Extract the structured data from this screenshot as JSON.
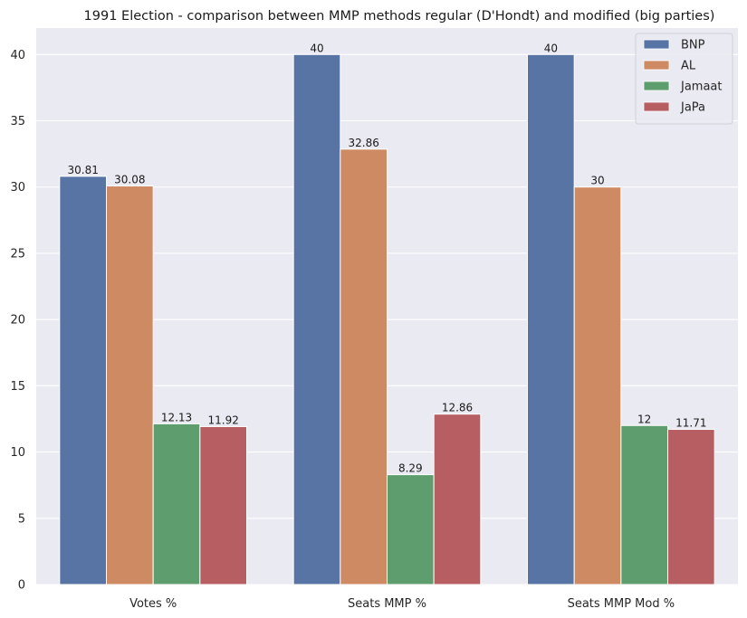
{
  "chart_data": {
    "type": "bar",
    "title": "1991 Election - comparison between MMP methods regular (D'Hondt) and modified (big parties)",
    "xlabel": "",
    "ylabel": "",
    "categories": [
      "Votes %",
      "Seats MMP %",
      "Seats MMP Mod %"
    ],
    "series": [
      {
        "name": "BNP",
        "values": [
          30.81,
          40,
          40
        ],
        "labels": [
          "30.81",
          "40",
          "40"
        ],
        "color": "#5874a5"
      },
      {
        "name": "AL",
        "values": [
          30.08,
          32.86,
          30
        ],
        "labels": [
          "30.08",
          "32.86",
          "30"
        ],
        "color": "#cd8a63"
      },
      {
        "name": "Jamaat",
        "values": [
          12.13,
          8.29,
          12
        ],
        "labels": [
          "12.13",
          "8.29",
          "12"
        ],
        "color": "#5e9e6e"
      },
      {
        "name": "JaPa",
        "values": [
          11.92,
          12.86,
          11.71
        ],
        "labels": [
          "11.92",
          "12.86",
          "11.71"
        ],
        "color": "#b65e62"
      }
    ],
    "ylim": [
      0,
      42
    ],
    "yticks": [
      0,
      5,
      10,
      15,
      20,
      25,
      30,
      35,
      40
    ],
    "ytick_labels": [
      "0",
      "5",
      "10",
      "15",
      "20",
      "25",
      "30",
      "35",
      "40"
    ],
    "grid": true,
    "legend_position": "top-right",
    "background_color": "#eaeaf2",
    "grid_color": "#ffffff"
  }
}
